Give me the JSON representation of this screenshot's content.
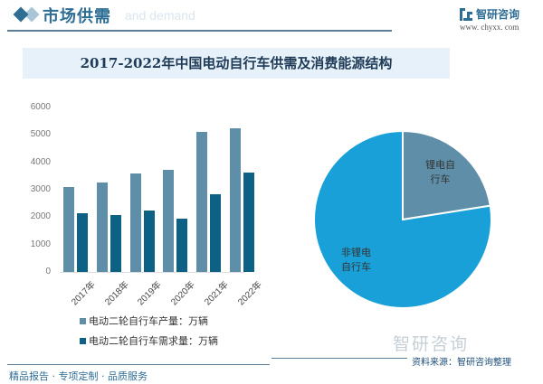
{
  "header": {
    "title": "市场供需",
    "ghost_text": "and demand",
    "brand_name": "智研咨询",
    "brand_url": "www. chyxx. com"
  },
  "footer": {
    "slogan": "精品报告 · 专项定制 · 品质服务",
    "brand_watermark": "智研咨询",
    "source": "资料来源：智研咨询整理"
  },
  "colors": {
    "production": "#5f8fa8",
    "demand": "#0d6185",
    "non_lithium": "#1aa0d8",
    "lithium": "#5f8fa8",
    "accent": "#2e6d94"
  },
  "chart_data": [
    {
      "type": "bar",
      "title": "2017-2022年中国电动自行车供需及消费能源结构",
      "categories": [
        "2017年",
        "2018年",
        "2019年",
        "2020年",
        "2021年",
        "2022年"
      ],
      "series": [
        {
          "name": "电动二轮自行车产量：万辆",
          "values": [
            3090,
            3260,
            3590,
            3710,
            5110,
            5230
          ]
        },
        {
          "name": "电动二轮自行车需求量：万辆",
          "values": [
            2130,
            2080,
            2250,
            1930,
            2820,
            3630
          ]
        }
      ],
      "yticks": [
        0,
        1000,
        2000,
        3000,
        4000,
        5000,
        6000
      ],
      "ylim": [
        0,
        6000
      ],
      "xlabel": "",
      "ylabel": "",
      "grid": false,
      "legend_position": "bottom"
    },
    {
      "type": "pie",
      "labels": [
        "锂电自行车",
        "非锂电自行车"
      ],
      "values": [
        22.5,
        77.5
      ]
    }
  ],
  "pie_labels": {
    "lithium": [
      "锂电自",
      "行车"
    ],
    "non_lithium": [
      "非锂电",
      "自行车"
    ]
  }
}
